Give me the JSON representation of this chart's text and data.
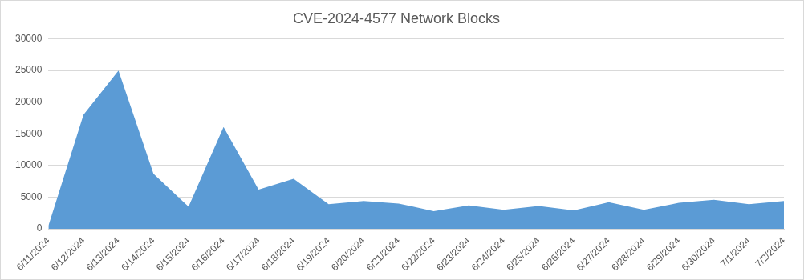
{
  "chart_data": {
    "type": "area",
    "title": "CVE-2024-4577 Network Blocks",
    "categories": [
      "6/11/2024",
      "6/12/2024",
      "6/13/2024",
      "6/14/2024",
      "6/15/2024",
      "6/16/2024",
      "6/17/2024",
      "6/18/2024",
      "6/19/2024",
      "6/20/2024",
      "6/21/2024",
      "6/22/2024",
      "6/23/2024",
      "6/24/2024",
      "6/25/2024",
      "6/26/2024",
      "6/27/2024",
      "6/28/2024",
      "6/29/2024",
      "6/30/2024",
      "7/1/2024",
      "7/2/2024"
    ],
    "series": [
      {
        "color": "#5b9bd5",
        "values": [
          500,
          18000,
          25000,
          8700,
          3500,
          16100,
          6200,
          7900,
          3900,
          4400,
          4000,
          2800,
          3700,
          3000,
          3600,
          2900,
          4200,
          3000,
          4100,
          4600,
          3900,
          4400
        ]
      }
    ],
    "ylim": [
      0,
      30000
    ],
    "yticks": [
      0,
      5000,
      10000,
      15000,
      20000,
      25000,
      30000
    ],
    "grid": "y",
    "legend": false
  }
}
